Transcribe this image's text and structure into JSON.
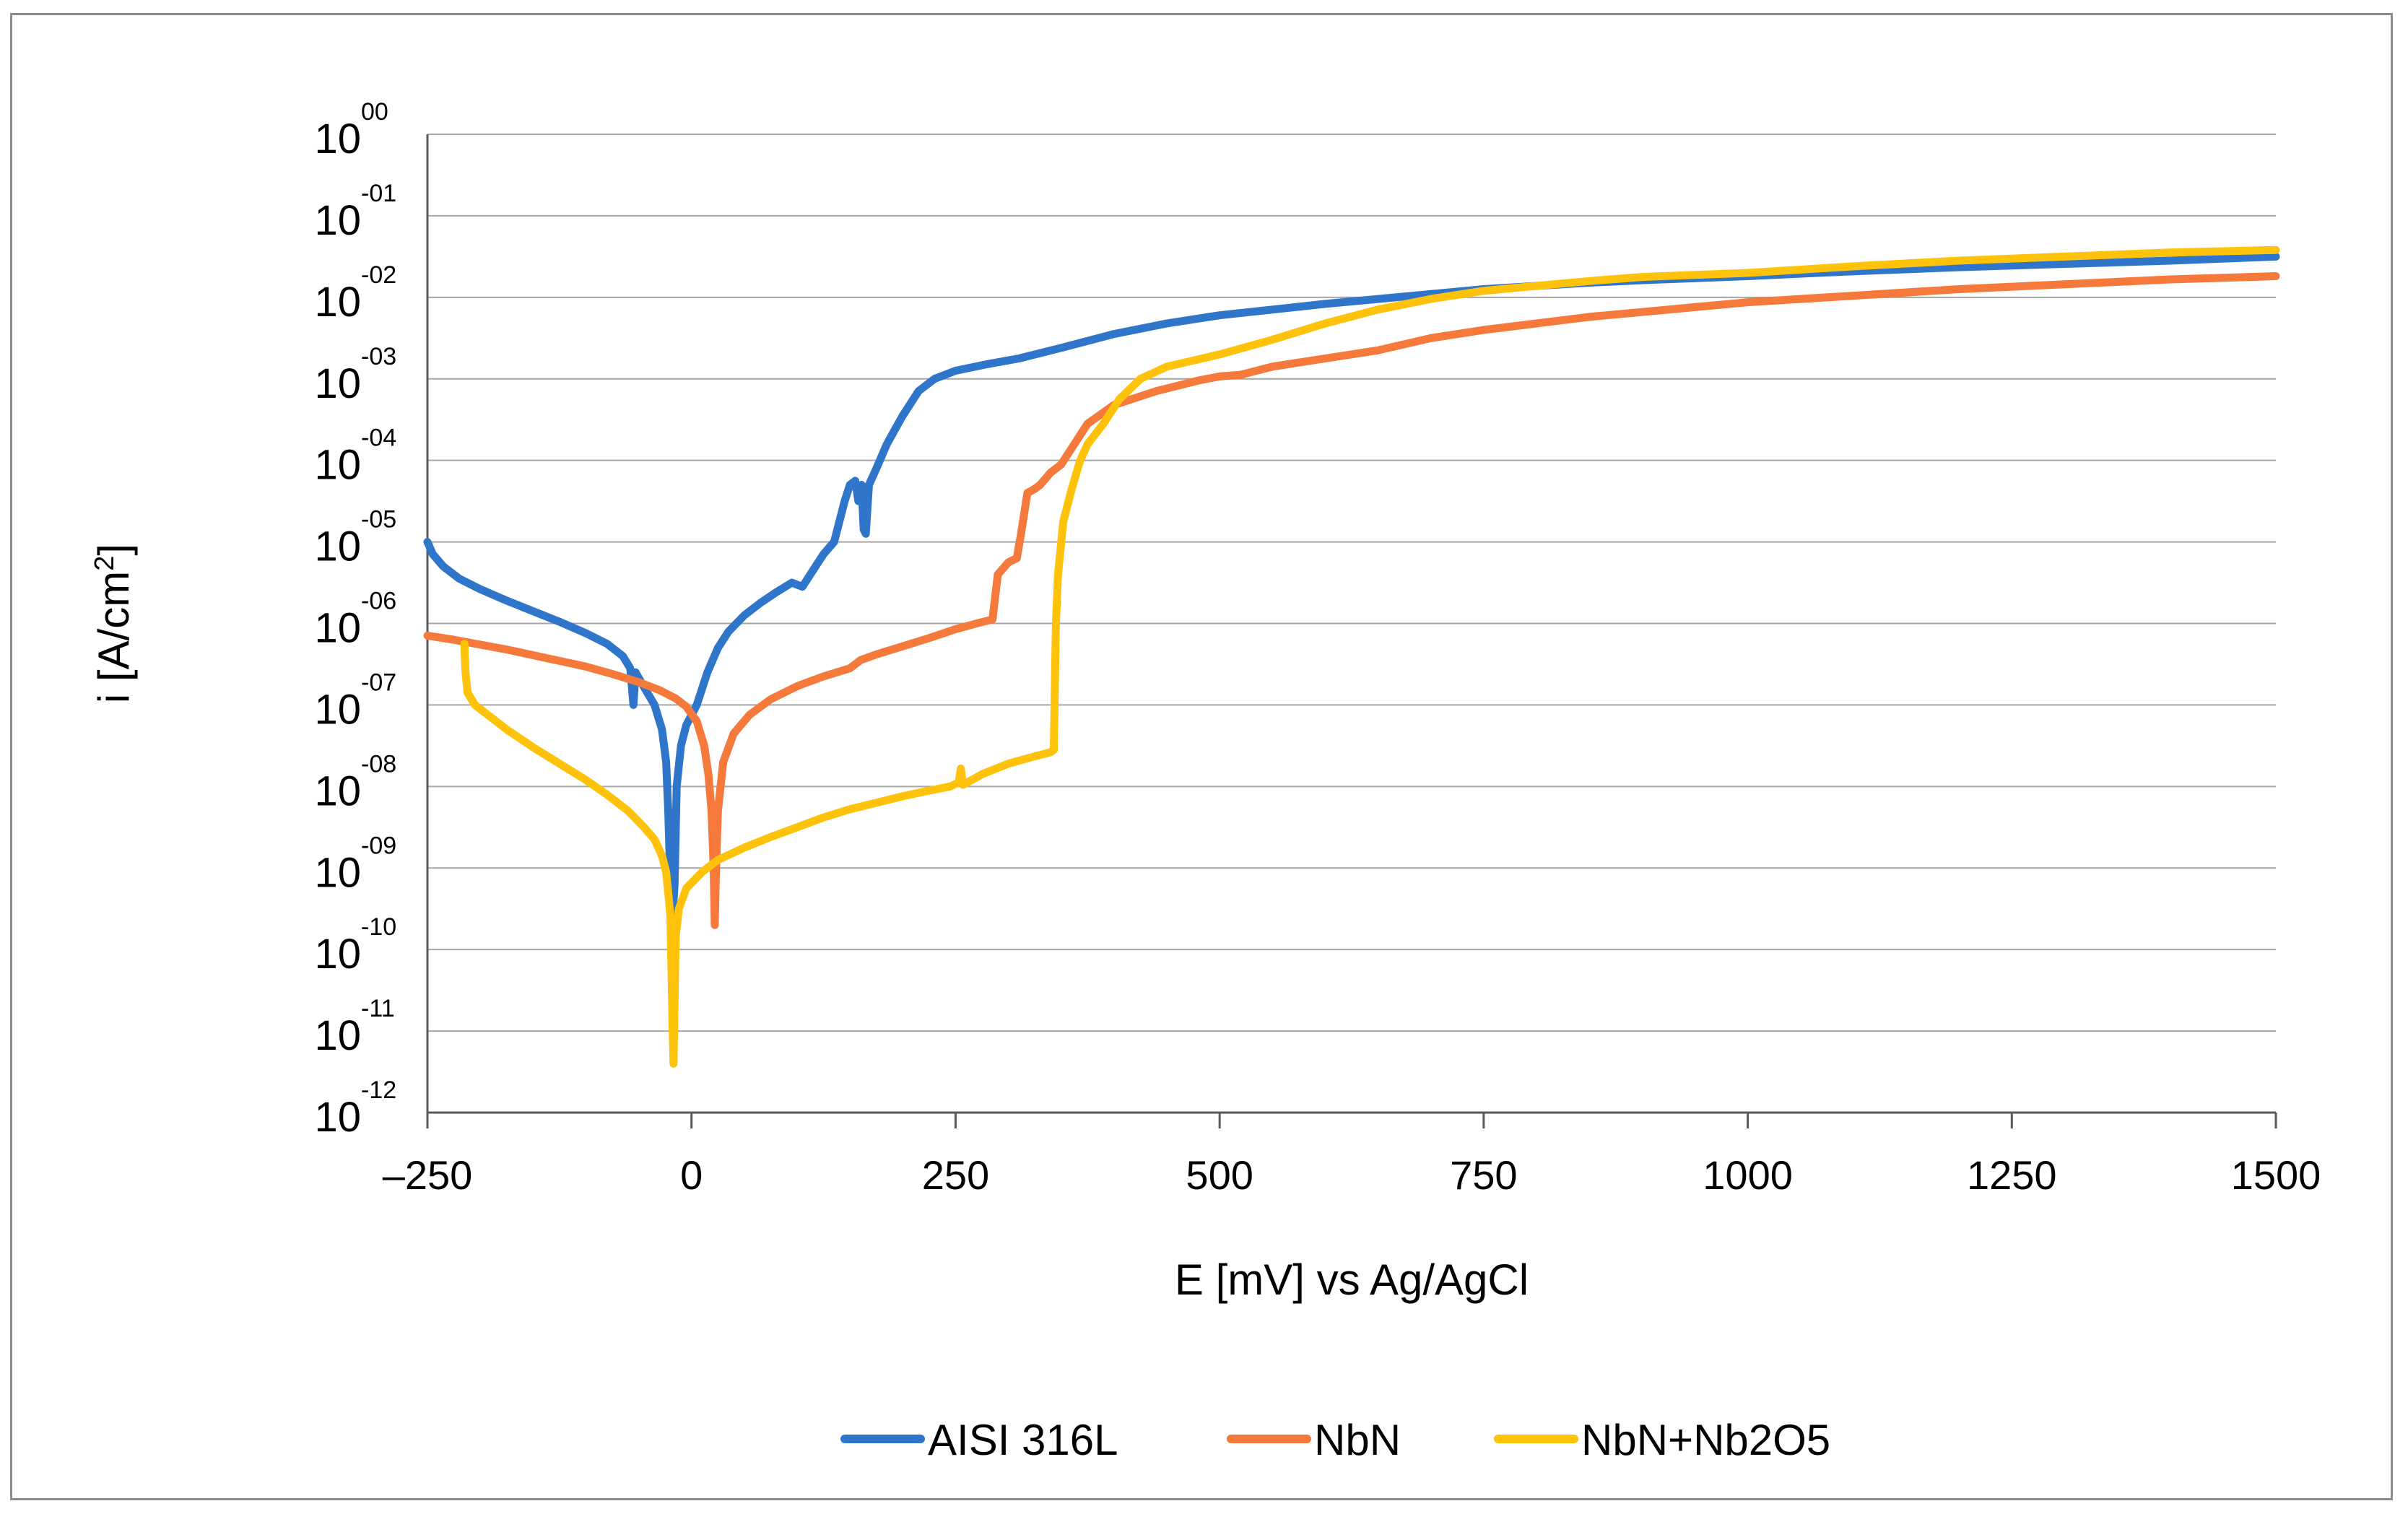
{
  "chart_data": {
    "type": "line",
    "title": "",
    "xlabel": "E [mV] vs Ag/AgCl",
    "ylabel": "i [A/cm",
    "ylabel_sup": "2",
    "ylabel_end": "]",
    "xlim": [
      -250,
      1500
    ],
    "ylim_log10": [
      -12,
      0
    ],
    "y_scale": "log",
    "grid": "horizontal",
    "legend_position": "bottom",
    "x_ticks": [
      {
        "value": -250,
        "label": "–250"
      },
      {
        "value": 0,
        "label": "0"
      },
      {
        "value": 250,
        "label": "250"
      },
      {
        "value": 500,
        "label": "500"
      },
      {
        "value": 750,
        "label": "750"
      },
      {
        "value": 1000,
        "label": "1000"
      },
      {
        "value": 1250,
        "label": "1250"
      },
      {
        "value": 1500,
        "label": "1500"
      }
    ],
    "y_ticks": [
      {
        "exp": 0,
        "base": "10",
        "sup": "00"
      },
      {
        "exp": -1,
        "base": "10",
        "sup": "-01"
      },
      {
        "exp": -2,
        "base": "10",
        "sup": "-02"
      },
      {
        "exp": -3,
        "base": "10",
        "sup": "-03"
      },
      {
        "exp": -4,
        "base": "10",
        "sup": "-04"
      },
      {
        "exp": -5,
        "base": "10",
        "sup": "-05"
      },
      {
        "exp": -6,
        "base": "10",
        "sup": "-06"
      },
      {
        "exp": -7,
        "base": "10",
        "sup": "-07"
      },
      {
        "exp": -8,
        "base": "10",
        "sup": "-08"
      },
      {
        "exp": -9,
        "base": "10",
        "sup": "-09"
      },
      {
        "exp": -10,
        "base": "10",
        "sup": "-10"
      },
      {
        "exp": -11,
        "base": "10",
        "sup": "-11"
      },
      {
        "exp": -12,
        "base": "10",
        "sup": "-12"
      }
    ],
    "series": [
      {
        "name": "AISI 316L",
        "color": "#2f75c9",
        "points_E_log10i": [
          [
            -250,
            -5.0
          ],
          [
            -245,
            -5.15
          ],
          [
            -235,
            -5.3
          ],
          [
            -220,
            -5.45
          ],
          [
            -200,
            -5.58
          ],
          [
            -175,
            -5.72
          ],
          [
            -150,
            -5.85
          ],
          [
            -125,
            -5.98
          ],
          [
            -100,
            -6.12
          ],
          [
            -80,
            -6.25
          ],
          [
            -65,
            -6.4
          ],
          [
            -58,
            -6.55
          ],
          [
            -55,
            -7.0
          ],
          [
            -53,
            -6.6
          ],
          [
            -45,
            -6.78
          ],
          [
            -35,
            -7.0
          ],
          [
            -28,
            -7.3
          ],
          [
            -24,
            -7.7
          ],
          [
            -22,
            -8.3
          ],
          [
            -20,
            -9.2
          ],
          [
            -18,
            -9.6
          ],
          [
            -16,
            -9.2
          ],
          [
            -14,
            -8.0
          ],
          [
            -10,
            -7.5
          ],
          [
            -5,
            -7.25
          ],
          [
            5,
            -7.0
          ],
          [
            15,
            -6.6
          ],
          [
            25,
            -6.3
          ],
          [
            35,
            -6.1
          ],
          [
            50,
            -5.9
          ],
          [
            65,
            -5.75
          ],
          [
            80,
            -5.62
          ],
          [
            95,
            -5.5
          ],
          [
            105,
            -5.55
          ],
          [
            115,
            -5.35
          ],
          [
            125,
            -5.15
          ],
          [
            135,
            -5.0
          ],
          [
            145,
            -4.5
          ],
          [
            150,
            -4.3
          ],
          [
            155,
            -4.25
          ],
          [
            158,
            -4.5
          ],
          [
            161,
            -4.3
          ],
          [
            163,
            -4.85
          ],
          [
            165,
            -4.9
          ],
          [
            168,
            -4.3
          ],
          [
            175,
            -4.1
          ],
          [
            185,
            -3.8
          ],
          [
            200,
            -3.45
          ],
          [
            215,
            -3.15
          ],
          [
            230,
            -3.0
          ],
          [
            250,
            -2.9
          ],
          [
            280,
            -2.82
          ],
          [
            310,
            -2.75
          ],
          [
            350,
            -2.62
          ],
          [
            400,
            -2.45
          ],
          [
            450,
            -2.32
          ],
          [
            500,
            -2.22
          ],
          [
            550,
            -2.15
          ],
          [
            600,
            -2.08
          ],
          [
            650,
            -2.02
          ],
          [
            700,
            -1.96
          ],
          [
            750,
            -1.9
          ],
          [
            800,
            -1.86
          ],
          [
            850,
            -1.82
          ],
          [
            900,
            -1.79
          ],
          [
            1000,
            -1.74
          ],
          [
            1100,
            -1.68
          ],
          [
            1200,
            -1.63
          ],
          [
            1300,
            -1.59
          ],
          [
            1400,
            -1.55
          ],
          [
            1500,
            -1.5
          ]
        ]
      },
      {
        "name": "NbN",
        "color": "#f5793a",
        "points_E_log10i": [
          [
            -250,
            -6.15
          ],
          [
            -225,
            -6.2
          ],
          [
            -200,
            -6.26
          ],
          [
            -175,
            -6.32
          ],
          [
            -150,
            -6.39
          ],
          [
            -125,
            -6.46
          ],
          [
            -100,
            -6.53
          ],
          [
            -75,
            -6.62
          ],
          [
            -50,
            -6.72
          ],
          [
            -30,
            -6.82
          ],
          [
            -15,
            -6.92
          ],
          [
            -5,
            -7.02
          ],
          [
            5,
            -7.2
          ],
          [
            12,
            -7.5
          ],
          [
            16,
            -7.85
          ],
          [
            19,
            -8.3
          ],
          [
            21,
            -9.0
          ],
          [
            22,
            -9.7
          ],
          [
            23,
            -9.1
          ],
          [
            25,
            -8.3
          ],
          [
            30,
            -7.7
          ],
          [
            40,
            -7.35
          ],
          [
            55,
            -7.12
          ],
          [
            75,
            -6.93
          ],
          [
            100,
            -6.77
          ],
          [
            125,
            -6.65
          ],
          [
            150,
            -6.55
          ],
          [
            160,
            -6.45
          ],
          [
            175,
            -6.38
          ],
          [
            200,
            -6.28
          ],
          [
            225,
            -6.18
          ],
          [
            250,
            -6.07
          ],
          [
            270,
            -6.0
          ],
          [
            285,
            -5.95
          ],
          [
            290,
            -5.4
          ],
          [
            300,
            -5.25
          ],
          [
            308,
            -5.2
          ],
          [
            312,
            -4.9
          ],
          [
            318,
            -4.4
          ],
          [
            325,
            -4.35
          ],
          [
            330,
            -4.3
          ],
          [
            340,
            -4.15
          ],
          [
            350,
            -4.05
          ],
          [
            360,
            -3.85
          ],
          [
            375,
            -3.55
          ],
          [
            400,
            -3.32
          ],
          [
            440,
            -3.15
          ],
          [
            480,
            -3.02
          ],
          [
            500,
            -2.97
          ],
          [
            520,
            -2.95
          ],
          [
            550,
            -2.85
          ],
          [
            600,
            -2.75
          ],
          [
            650,
            -2.65
          ],
          [
            700,
            -2.5
          ],
          [
            750,
            -2.4
          ],
          [
            800,
            -2.32
          ],
          [
            850,
            -2.24
          ],
          [
            900,
            -2.18
          ],
          [
            950,
            -2.12
          ],
          [
            1000,
            -2.06
          ],
          [
            1100,
            -1.98
          ],
          [
            1200,
            -1.9
          ],
          [
            1300,
            -1.84
          ],
          [
            1400,
            -1.78
          ],
          [
            1500,
            -1.74
          ]
        ]
      },
      {
        "name": "NbN+Nb2O5",
        "color": "#ffc20a",
        "points_E_log10i": [
          [
            -215,
            -6.25
          ],
          [
            -214,
            -6.6
          ],
          [
            -212,
            -6.85
          ],
          [
            -205,
            -7.0
          ],
          [
            -190,
            -7.15
          ],
          [
            -175,
            -7.3
          ],
          [
            -150,
            -7.52
          ],
          [
            -125,
            -7.72
          ],
          [
            -100,
            -7.92
          ],
          [
            -80,
            -8.1
          ],
          [
            -60,
            -8.3
          ],
          [
            -45,
            -8.5
          ],
          [
            -35,
            -8.65
          ],
          [
            -28,
            -8.85
          ],
          [
            -24,
            -9.05
          ],
          [
            -22,
            -9.3
          ],
          [
            -20,
            -9.6
          ],
          [
            -19,
            -10.2
          ],
          [
            -18,
            -10.9
          ],
          [
            -17,
            -11.4
          ],
          [
            -16,
            -10.6
          ],
          [
            -15,
            -9.85
          ],
          [
            -12,
            -9.5
          ],
          [
            -5,
            -9.25
          ],
          [
            10,
            -9.05
          ],
          [
            25,
            -8.9
          ],
          [
            50,
            -8.75
          ],
          [
            75,
            -8.62
          ],
          [
            100,
            -8.5
          ],
          [
            125,
            -8.38
          ],
          [
            150,
            -8.28
          ],
          [
            175,
            -8.2
          ],
          [
            200,
            -8.12
          ],
          [
            225,
            -8.05
          ],
          [
            245,
            -8.0
          ],
          [
            253,
            -7.95
          ],
          [
            255,
            -7.78
          ],
          [
            257,
            -7.98
          ],
          [
            275,
            -7.85
          ],
          [
            300,
            -7.72
          ],
          [
            325,
            -7.63
          ],
          [
            340,
            -7.58
          ],
          [
            343,
            -7.55
          ],
          [
            345,
            -6.0
          ],
          [
            347,
            -5.4
          ],
          [
            352,
            -4.75
          ],
          [
            360,
            -4.35
          ],
          [
            368,
            -4.0
          ],
          [
            375,
            -3.8
          ],
          [
            390,
            -3.55
          ],
          [
            405,
            -3.25
          ],
          [
            425,
            -3.0
          ],
          [
            450,
            -2.85
          ],
          [
            500,
            -2.7
          ],
          [
            550,
            -2.52
          ],
          [
            600,
            -2.32
          ],
          [
            650,
            -2.15
          ],
          [
            700,
            -2.02
          ],
          [
            750,
            -1.92
          ],
          [
            800,
            -1.86
          ],
          [
            850,
            -1.8
          ],
          [
            900,
            -1.75
          ],
          [
            1000,
            -1.7
          ],
          [
            1100,
            -1.62
          ],
          [
            1200,
            -1.55
          ],
          [
            1300,
            -1.5
          ],
          [
            1400,
            -1.45
          ],
          [
            1500,
            -1.42
          ]
        ]
      }
    ]
  }
}
